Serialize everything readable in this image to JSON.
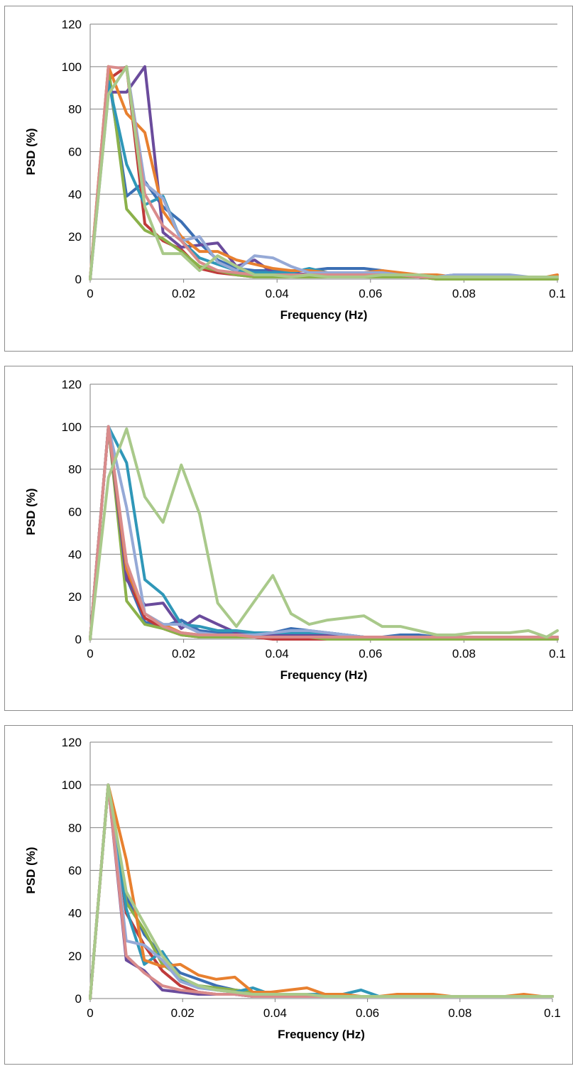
{
  "colors": {
    "grid": "#7f7f7f",
    "series": [
      "#3c6fb4",
      "#bf3b3b",
      "#8bb14a",
      "#6a4b9c",
      "#2f97b8",
      "#e8802f",
      "#95a9d6",
      "#d98b8b",
      "#a9c98a"
    ]
  },
  "chart_data": [
    {
      "type": "line",
      "xlabel": "Frequency (Hz)",
      "ylabel": "PSD (%)",
      "xlim": [
        0,
        0.1
      ],
      "ylim": [
        0,
        120
      ],
      "x_ticks": [
        "0",
        "0.02",
        "0.04",
        "0.06",
        "0.08",
        "0.1"
      ],
      "y_ticks": [
        "0",
        "20",
        "40",
        "60",
        "80",
        "100",
        "120"
      ],
      "grid": true,
      "legend": "none",
      "x": [
        0,
        0.0039,
        0.0078,
        0.0117,
        0.0156,
        0.0195,
        0.0234,
        0.0273,
        0.0313,
        0.0352,
        0.0391,
        0.043,
        0.0469,
        0.0508,
        0.0547,
        0.0586,
        0.0625,
        0.0664,
        0.0703,
        0.0742,
        0.0781,
        0.082,
        0.0859,
        0.0898,
        0.0938,
        0.0977,
        0.1
      ],
      "series": [
        {
          "values": [
            0,
            96,
            39,
            46,
            34,
            27,
            17,
            9,
            5,
            4,
            4,
            4,
            4,
            5,
            5,
            5,
            4,
            2,
            2,
            1,
            2,
            1,
            1,
            1,
            1,
            1,
            1
          ]
        },
        {
          "values": [
            0,
            94,
            100,
            26,
            18,
            14,
            5,
            3,
            2,
            1,
            1,
            1,
            1,
            1,
            1,
            1,
            1,
            1,
            1,
            0,
            0,
            1,
            0,
            0,
            0,
            1,
            1
          ]
        },
        {
          "values": [
            0,
            100,
            33,
            23,
            19,
            13,
            6,
            4,
            2,
            1,
            1,
            1,
            1,
            1,
            1,
            1,
            1,
            1,
            1,
            0,
            0,
            0,
            0,
            0,
            0,
            0,
            0
          ]
        },
        {
          "values": [
            0,
            88,
            88,
            100,
            22,
            15,
            16,
            17,
            6,
            9,
            3,
            3,
            2,
            2,
            2,
            2,
            2,
            2,
            1,
            1,
            1,
            1,
            1,
            1,
            1,
            1,
            1
          ]
        },
        {
          "values": [
            0,
            93,
            54,
            35,
            39,
            18,
            10,
            7,
            4,
            3,
            3,
            3,
            5,
            3,
            3,
            3,
            2,
            2,
            2,
            1,
            1,
            1,
            1,
            1,
            1,
            1,
            1
          ]
        },
        {
          "values": [
            0,
            100,
            78,
            69,
            32,
            20,
            13,
            13,
            9,
            7,
            5,
            4,
            4,
            3,
            3,
            3,
            4,
            3,
            2,
            2,
            1,
            1,
            1,
            1,
            1,
            1,
            2
          ]
        },
        {
          "values": [
            0,
            87,
            100,
            45,
            38,
            18,
            20,
            8,
            4,
            11,
            10,
            6,
            3,
            3,
            3,
            3,
            3,
            2,
            2,
            1,
            2,
            2,
            2,
            2,
            1,
            1,
            1
          ]
        },
        {
          "values": [
            0,
            100,
            99,
            40,
            25,
            18,
            8,
            4,
            3,
            2,
            2,
            2,
            2,
            2,
            2,
            2,
            2,
            2,
            1,
            1,
            1,
            1,
            1,
            1,
            1,
            1,
            1
          ]
        },
        {
          "values": [
            0,
            87,
            100,
            34,
            12,
            12,
            4,
            11,
            6,
            2,
            2,
            1,
            2,
            1,
            1,
            1,
            2,
            2,
            2,
            1,
            1,
            1,
            1,
            1,
            1,
            1,
            1
          ]
        }
      ]
    },
    {
      "type": "line",
      "xlabel": "Frequency (Hz)",
      "ylabel": "PSD (%)",
      "xlim": [
        0,
        0.1
      ],
      "ylim": [
        0,
        120
      ],
      "x_ticks": [
        "0",
        "0.02",
        "0.04",
        "0.06",
        "0.08",
        "0.1"
      ],
      "y_ticks": [
        "0",
        "20",
        "40",
        "60",
        "80",
        "100",
        "120"
      ],
      "grid": true,
      "legend": "none",
      "x": [
        0,
        0.0039,
        0.0078,
        0.0117,
        0.0156,
        0.0195,
        0.0234,
        0.0273,
        0.0313,
        0.0352,
        0.0391,
        0.043,
        0.0469,
        0.0508,
        0.0547,
        0.0586,
        0.0625,
        0.0664,
        0.0703,
        0.0742,
        0.0781,
        0.082,
        0.0859,
        0.0898,
        0.0938,
        0.0977,
        0.1
      ],
      "series": [
        {
          "values": [
            0,
            100,
            29,
            8,
            6,
            9,
            4,
            3,
            3,
            3,
            3,
            5,
            4,
            3,
            2,
            1,
            1,
            2,
            2,
            1,
            1,
            1,
            1,
            1,
            1,
            1,
            1
          ]
        },
        {
          "values": [
            0,
            100,
            30,
            10,
            5,
            2,
            1,
            1,
            1,
            1,
            0,
            0,
            0,
            0,
            0,
            0,
            0,
            0,
            0,
            0,
            0,
            0,
            0,
            0,
            0,
            0,
            0
          ]
        },
        {
          "values": [
            0,
            100,
            18,
            7,
            5,
            2,
            1,
            1,
            1,
            1,
            1,
            1,
            1,
            0,
            0,
            0,
            0,
            0,
            0,
            0,
            0,
            0,
            0,
            0,
            0,
            0,
            0
          ]
        },
        {
          "values": [
            0,
            100,
            28,
            16,
            17,
            5,
            11,
            7,
            3,
            2,
            2,
            2,
            2,
            2,
            1,
            1,
            1,
            1,
            1,
            1,
            1,
            1,
            1,
            1,
            1,
            1,
            1
          ]
        },
        {
          "values": [
            0,
            100,
            83,
            28,
            21,
            7,
            6,
            4,
            4,
            3,
            3,
            3,
            3,
            3,
            2,
            1,
            1,
            1,
            1,
            1,
            1,
            1,
            1,
            1,
            1,
            1,
            1
          ]
        },
        {
          "values": [
            0,
            100,
            33,
            12,
            7,
            3,
            2,
            2,
            2,
            1,
            1,
            1,
            1,
            1,
            1,
            1,
            1,
            1,
            1,
            1,
            1,
            1,
            1,
            1,
            1,
            1,
            1
          ]
        },
        {
          "values": [
            0,
            100,
            62,
            12,
            7,
            7,
            3,
            2,
            2,
            2,
            3,
            4,
            4,
            3,
            2,
            1,
            1,
            1,
            1,
            1,
            1,
            1,
            1,
            1,
            1,
            1,
            1
          ]
        },
        {
          "values": [
            0,
            100,
            36,
            12,
            6,
            3,
            2,
            2,
            2,
            1,
            1,
            1,
            1,
            1,
            1,
            1,
            1,
            1,
            1,
            1,
            1,
            1,
            1,
            1,
            1,
            1,
            1
          ]
        },
        {
          "values": [
            0,
            76,
            99,
            67,
            55,
            82,
            59,
            17,
            6,
            18,
            30,
            12,
            7,
            9,
            10,
            11,
            6,
            6,
            4,
            2,
            2,
            3,
            3,
            3,
            4,
            1,
            4
          ]
        }
      ]
    },
    {
      "type": "line",
      "xlabel": "Frequency (Hz)",
      "ylabel": "PSD (%)",
      "xlim": [
        0,
        0.1
      ],
      "ylim": [
        0,
        120
      ],
      "x_ticks": [
        "0",
        "0.02",
        "0.04",
        "0.06",
        "0.08",
        "0.1"
      ],
      "y_ticks": [
        "0",
        "20",
        "40",
        "60",
        "80",
        "100",
        "120"
      ],
      "grid": true,
      "legend": "none",
      "x": [
        0,
        0.0039,
        0.0078,
        0.0117,
        0.0156,
        0.0195,
        0.0234,
        0.0273,
        0.0313,
        0.0352,
        0.0391,
        0.043,
        0.0469,
        0.0508,
        0.0547,
        0.0586,
        0.0625,
        0.0664,
        0.0703,
        0.0742,
        0.0781,
        0.082,
        0.0859,
        0.0898,
        0.0938,
        0.0977,
        0.1
      ],
      "series": [
        {
          "values": [
            0,
            100,
            48,
            30,
            20,
            12,
            9,
            6,
            4,
            3,
            2,
            2,
            2,
            2,
            1,
            1,
            1,
            1,
            1,
            1,
            1,
            1,
            1,
            1,
            1,
            1,
            1
          ]
        },
        {
          "values": [
            0,
            100,
            40,
            25,
            13,
            6,
            3,
            2,
            2,
            1,
            1,
            1,
            1,
            1,
            1,
            1,
            1,
            1,
            1,
            1,
            1,
            1,
            1,
            1,
            1,
            1,
            1
          ]
        },
        {
          "values": [
            0,
            100,
            45,
            32,
            16,
            10,
            6,
            5,
            4,
            3,
            2,
            2,
            2,
            2,
            1,
            1,
            1,
            1,
            1,
            1,
            1,
            1,
            1,
            1,
            1,
            1,
            1
          ]
        },
        {
          "values": [
            0,
            100,
            18,
            13,
            4,
            3,
            2,
            2,
            2,
            1,
            1,
            1,
            1,
            1,
            1,
            1,
            1,
            1,
            1,
            1,
            1,
            1,
            1,
            1,
            1,
            1,
            1
          ]
        },
        {
          "values": [
            0,
            100,
            42,
            16,
            22,
            9,
            6,
            4,
            3,
            5,
            2,
            2,
            2,
            2,
            2,
            4,
            1,
            1,
            1,
            1,
            1,
            1,
            1,
            1,
            1,
            1,
            1
          ]
        },
        {
          "values": [
            0,
            100,
            65,
            18,
            15,
            16,
            11,
            9,
            10,
            3,
            3,
            4,
            5,
            2,
            2,
            1,
            1,
            2,
            2,
            2,
            1,
            1,
            1,
            1,
            2,
            1,
            1
          ]
        },
        {
          "values": [
            0,
            100,
            27,
            25,
            18,
            8,
            5,
            4,
            3,
            2,
            2,
            2,
            1,
            1,
            1,
            1,
            1,
            1,
            1,
            1,
            1,
            1,
            1,
            1,
            1,
            1,
            1
          ]
        },
        {
          "values": [
            0,
            100,
            20,
            12,
            6,
            4,
            3,
            2,
            2,
            1,
            1,
            1,
            1,
            1,
            1,
            1,
            1,
            1,
            1,
            1,
            1,
            1,
            1,
            1,
            1,
            1,
            1
          ]
        },
        {
          "values": [
            0,
            100,
            50,
            35,
            20,
            10,
            6,
            4,
            3,
            2,
            2,
            2,
            2,
            1,
            1,
            1,
            1,
            1,
            1,
            1,
            1,
            1,
            1,
            1,
            1,
            1,
            1
          ]
        }
      ]
    }
  ]
}
